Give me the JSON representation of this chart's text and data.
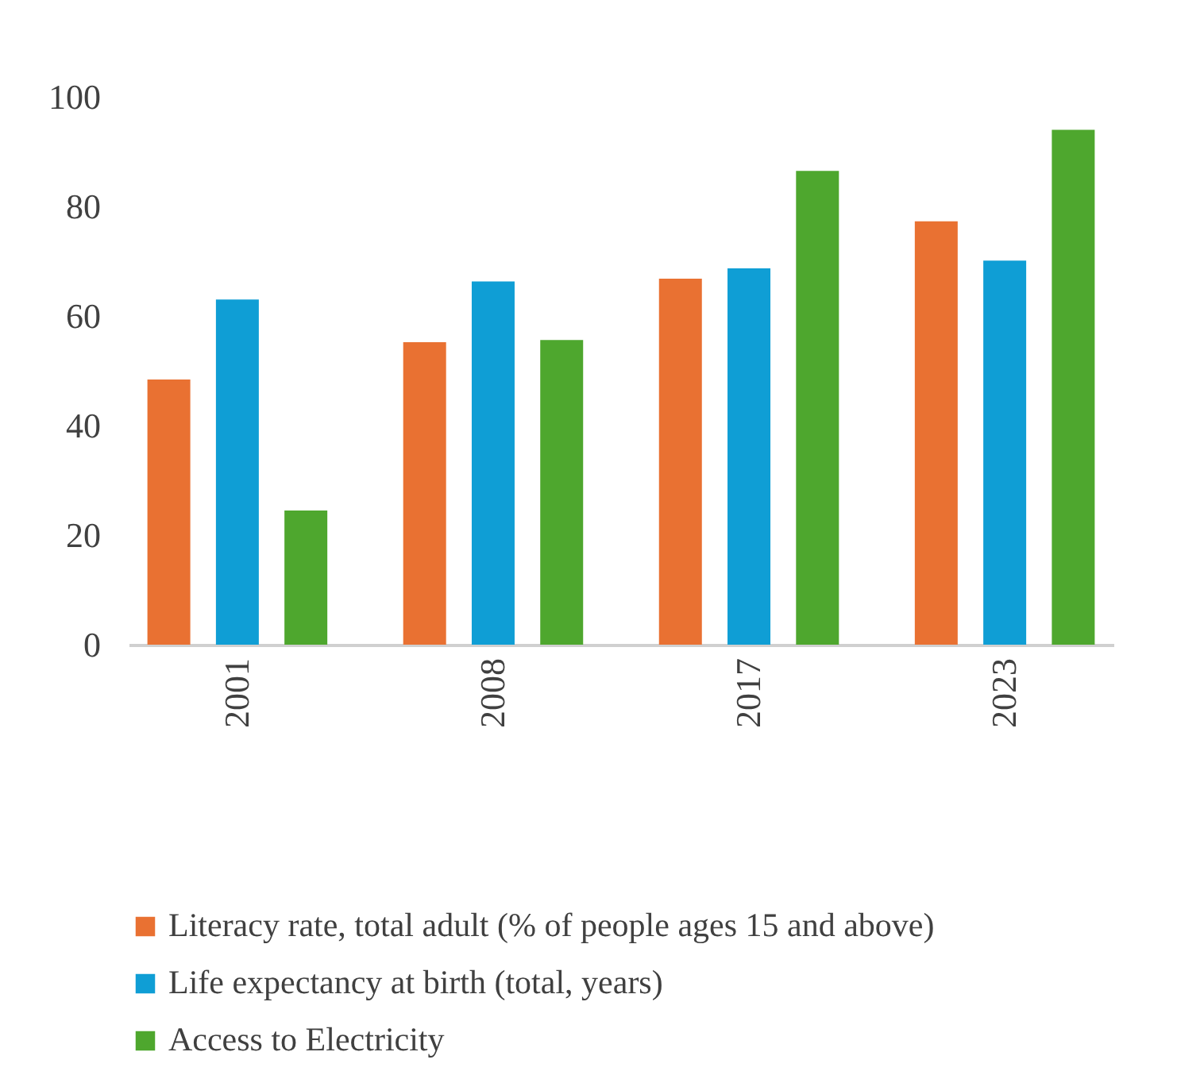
{
  "chart_data": {
    "type": "bar",
    "categories": [
      "2001",
      "2008",
      "2017",
      "2023"
    ],
    "series": [
      {
        "name": "Literacy rate, total adult (% of people ages 15 and above)",
        "color": "#e97132",
        "values": [
          48.4,
          55.2,
          66.8,
          77.3
        ]
      },
      {
        "name": "Life expectancy at birth (total, years)",
        "color": "#0f9ed5",
        "values": [
          63.0,
          66.3,
          68.7,
          70.1
        ]
      },
      {
        "name": "Access to Electricity",
        "color": "#4ea72e",
        "values": [
          24.5,
          55.6,
          86.5,
          94.0
        ]
      }
    ],
    "ylim": [
      0,
      100
    ],
    "yticks": [
      0,
      20,
      40,
      60,
      80,
      100
    ],
    "grid": false,
    "legend": "bottom"
  }
}
